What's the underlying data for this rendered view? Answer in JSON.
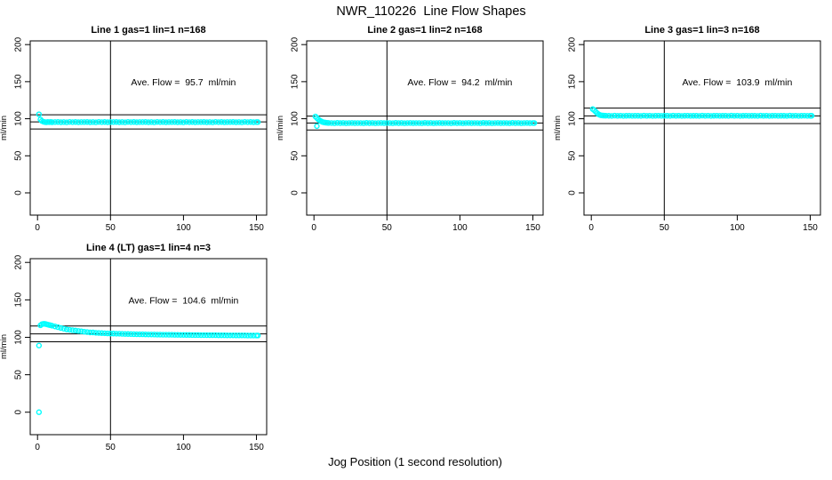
{
  "title": "NWR_110226  Line Flow Shapes",
  "xlabel": "Jog Position (1 second resolution)",
  "colors": {
    "points": "#00ffff",
    "lines": "#000000",
    "text": "#000000",
    "background": "#ffffff"
  },
  "x": [
    1,
    2,
    3,
    4,
    5,
    6,
    7,
    8,
    9,
    10,
    12,
    14,
    16,
    18,
    20,
    22,
    24,
    26,
    28,
    30,
    32,
    34,
    36,
    38,
    40,
    42,
    44,
    46,
    48,
    50,
    52,
    54,
    56,
    58,
    60,
    62,
    64,
    66,
    68,
    70,
    72,
    74,
    76,
    78,
    80,
    82,
    84,
    86,
    88,
    90,
    92,
    94,
    96,
    98,
    100,
    102,
    104,
    106,
    108,
    110,
    112,
    114,
    116,
    118,
    120,
    122,
    124,
    126,
    128,
    130,
    132,
    134,
    136,
    138,
    140,
    142,
    144,
    146,
    148,
    150,
    151
  ],
  "chart_data": [
    {
      "type": "scatter",
      "title": "Line 1 gas=1 lin=1 n=168",
      "n": 168,
      "ylabel": "ml/min",
      "annotation": "Ave. Flow =  95.7  ml/min",
      "ave_flow_ml_min": 95.7,
      "ref_hlines": [
        105.3,
        95.7,
        86.1
      ],
      "ref_vline_x": 50,
      "xlim": [
        -5,
        157
      ],
      "ylim": [
        -30,
        205
      ],
      "xticks": [
        0,
        50,
        100,
        150
      ],
      "yticks": [
        0,
        50,
        100,
        150,
        200
      ],
      "y": [
        106,
        99,
        97,
        96,
        95.5,
        95.2,
        95.7,
        95.4,
        95.6,
        95.3,
        95.5,
        95.6,
        95.3,
        95.5,
        95.2,
        95.7,
        95.4,
        95.6,
        95.3,
        95.5,
        95.5,
        95.6,
        95.3,
        95.5,
        95.2,
        95.7,
        95.4,
        95.6,
        95.3,
        95.5,
        95.5,
        95.6,
        95.3,
        95.5,
        95.2,
        95.7,
        95.4,
        95.6,
        95.3,
        95.5,
        95.5,
        95.6,
        95.3,
        95.5,
        95.2,
        95.7,
        95.4,
        95.6,
        95.3,
        95.5,
        95.5,
        95.6,
        95.3,
        95.5,
        95.2,
        95.7,
        95.4,
        95.6,
        95.3,
        95.5,
        95.5,
        95.6,
        95.3,
        95.5,
        95.2,
        95.7,
        95.4,
        95.6,
        95.3,
        95.5,
        95.5,
        95.6,
        95.3,
        95.5,
        95.2,
        95.7,
        95.4,
        95.6,
        95.3,
        95.5,
        95.5
      ],
      "outliers": []
    },
    {
      "type": "scatter",
      "title": "Line 2 gas=1 lin=2 n=168",
      "n": 168,
      "ylabel": "ml/min",
      "annotation": "Ave. Flow =  94.2  ml/min",
      "ave_flow_ml_min": 94.2,
      "ref_hlines": [
        103.6,
        94.2,
        84.8
      ],
      "ref_vline_x": 50,
      "xlim": [
        -5,
        157
      ],
      "ylim": [
        -30,
        205
      ],
      "xticks": [
        0,
        50,
        100,
        150
      ],
      "yticks": [
        0,
        50,
        100,
        150,
        200
      ],
      "y": [
        103,
        101,
        99,
        97.5,
        96.5,
        95.5,
        95,
        94.7,
        94.5,
        94.3,
        94.2,
        94,
        94.4,
        94.1,
        94.3,
        94,
        94.2,
        94.3,
        94.1,
        94.2,
        94.2,
        94,
        94.4,
        94.1,
        94.3,
        94,
        94.2,
        94.3,
        94.1,
        94.2,
        94.2,
        94,
        94.4,
        94.1,
        94.3,
        94,
        94.2,
        94.3,
        94.1,
        94.2,
        94.2,
        94,
        94.4,
        94.1,
        94.3,
        94,
        94.2,
        94.3,
        94.1,
        94.2,
        94.2,
        94,
        94.4,
        94.1,
        94.3,
        94,
        94.2,
        94.3,
        94.1,
        94.2,
        94.2,
        94,
        94.4,
        94.1,
        94.3,
        94,
        94.2,
        94.3,
        94.1,
        94.2,
        94.2,
        94,
        94.4,
        94.1,
        94.3,
        94,
        94.2,
        94.3,
        94.1,
        94.2,
        94.2
      ],
      "outliers": [
        [
          2,
          90
        ]
      ]
    },
    {
      "type": "scatter",
      "title": "Line 3 gas=1 lin=3 n=168",
      "n": 168,
      "ylabel": "ml/min",
      "annotation": "Ave. Flow =  103.9  ml/min",
      "ave_flow_ml_min": 103.9,
      "ref_hlines": [
        114.3,
        103.9,
        93.5
      ],
      "ref_vline_x": 50,
      "xlim": [
        -5,
        157
      ],
      "ylim": [
        -30,
        205
      ],
      "xticks": [
        0,
        50,
        100,
        150
      ],
      "yticks": [
        0,
        50,
        100,
        150,
        200
      ],
      "y": [
        113,
        111.5,
        109.5,
        107.5,
        106,
        105,
        104.5,
        104.3,
        104.2,
        104.1,
        104,
        103.8,
        104.2,
        103.9,
        104.1,
        103.8,
        104,
        104.1,
        103.9,
        104,
        104,
        103.8,
        104.2,
        103.9,
        104.1,
        103.8,
        104,
        104.1,
        103.9,
        104,
        104,
        103.8,
        104.2,
        103.9,
        104.1,
        103.8,
        104,
        104.1,
        103.9,
        104,
        104,
        103.8,
        104.2,
        103.9,
        104.1,
        103.8,
        104,
        104.1,
        103.9,
        104,
        104,
        103.8,
        104.2,
        103.9,
        104.1,
        103.8,
        104,
        104.1,
        103.9,
        104,
        104,
        103.8,
        104.2,
        103.9,
        104.1,
        103.8,
        104,
        104.1,
        103.9,
        104,
        104,
        103.8,
        104.2,
        103.9,
        104.1,
        103.8,
        104,
        104.1,
        103.9,
        104,
        104
      ],
      "outliers": []
    },
    {
      "type": "scatter",
      "title": "Line 4 (LT) gas=1 lin=4 n=3",
      "n": 3,
      "ylabel": "ml/min",
      "annotation": "Ave. Flow =  104.6  ml/min",
      "ave_flow_ml_min": 104.6,
      "ref_hlines": [
        115.1,
        104.6,
        94.1
      ],
      "ref_vline_x": 50,
      "xlim": [
        -5,
        157
      ],
      "ylim": [
        -30,
        205
      ],
      "xticks": [
        0,
        50,
        100,
        150
      ],
      "yticks": [
        0,
        50,
        100,
        150,
        200
      ],
      "y": [
        null,
        116,
        117.5,
        118,
        118,
        117.5,
        117,
        116.5,
        116,
        115.5,
        114.5,
        113.5,
        112.5,
        111.5,
        110.5,
        110,
        109.5,
        109,
        108.5,
        108,
        107.5,
        107,
        106.5,
        106.5,
        106,
        105.8,
        105.6,
        105.4,
        105.2,
        105,
        105,
        104.8,
        104.8,
        104.6,
        104.5,
        104.4,
        104.3,
        104.2,
        104.1,
        104,
        104,
        103.9,
        103.8,
        103.8,
        103.7,
        103.6,
        103.6,
        103.5,
        103.5,
        103.4,
        103.4,
        103.3,
        103.3,
        103.2,
        103.2,
        103.1,
        103.1,
        103,
        103,
        103,
        102.9,
        102.9,
        102.9,
        102.8,
        102.8,
        102.8,
        102.7,
        102.7,
        102.7,
        102.6,
        102.6,
        102.6,
        102.5,
        102.5,
        102.5,
        102.5,
        102.4,
        102.4,
        102.4,
        102.4,
        102.4
      ],
      "outliers": [
        [
          1,
          89
        ],
        [
          1,
          0
        ]
      ]
    }
  ]
}
